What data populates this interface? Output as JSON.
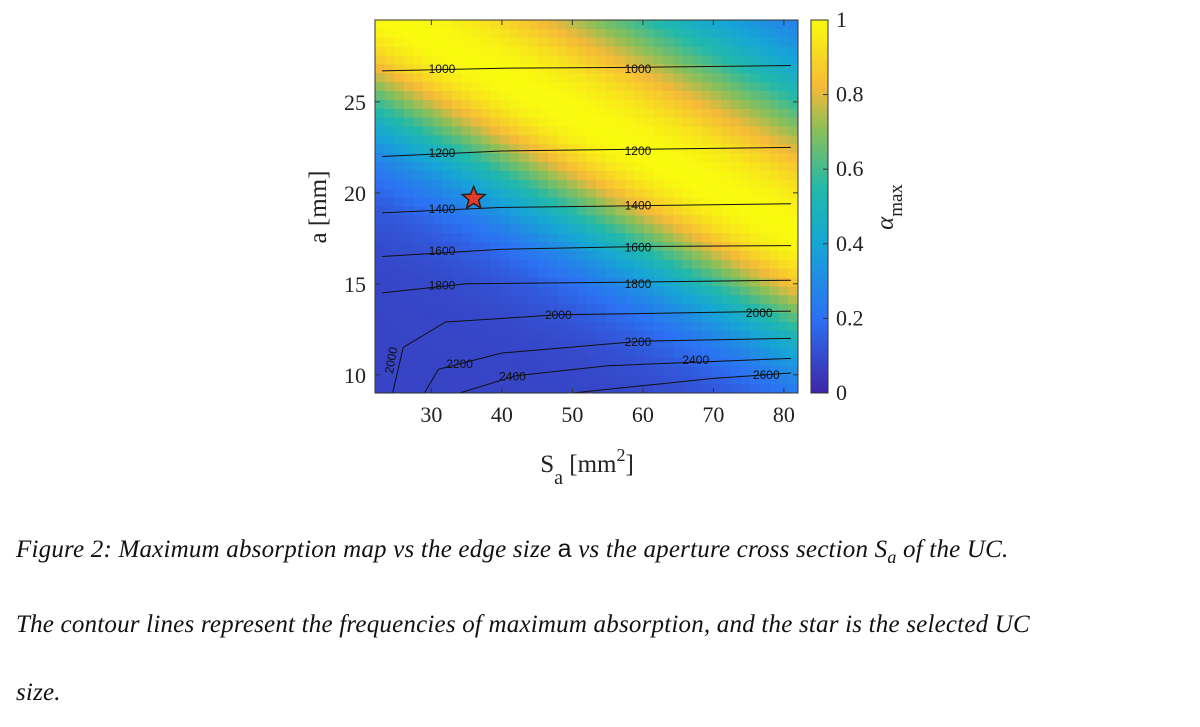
{
  "chart_data": {
    "type": "heatmap",
    "xlabel": "S",
    "xlabel_sub": "a",
    "xlabel_unit": "[mm",
    "xlabel_unit_sup": "2",
    "xlabel_unit_end": "]",
    "ylabel": "a [mm]",
    "xlim": [
      22,
      82
    ],
    "ylim": [
      9,
      29.5
    ],
    "xticks": [
      "30",
      "40",
      "50",
      "60",
      "70",
      "80"
    ],
    "yticks": [
      "10",
      "15",
      "20",
      "25"
    ],
    "colorbar": {
      "label": "α",
      "label_sub": "max",
      "min": 0,
      "max": 1,
      "ticks": [
        "0",
        "0.2",
        "0.4",
        "0.6",
        "0.8",
        "1"
      ]
    },
    "contour_labels": [
      {
        "text": "1000",
        "x": 31.5,
        "y": 26.8
      },
      {
        "text": "1000",
        "x": 59.3,
        "y": 26.8
      },
      {
        "text": "1200",
        "x": 31.5,
        "y": 22.2
      },
      {
        "text": "1200",
        "x": 59.3,
        "y": 22.3
      },
      {
        "text": "1400",
        "x": 31.5,
        "y": 19.1
      },
      {
        "text": "1400",
        "x": 59.3,
        "y": 19.3
      },
      {
        "text": "1600",
        "x": 31.5,
        "y": 16.8
      },
      {
        "text": "1600",
        "x": 59.3,
        "y": 17.0
      },
      {
        "text": "1800",
        "x": 31.5,
        "y": 14.9
      },
      {
        "text": "1800",
        "x": 59.3,
        "y": 15.0
      },
      {
        "text": "2000",
        "x": 48.0,
        "y": 13.3
      },
      {
        "text": "2000",
        "x": 76.5,
        "y": 13.4
      },
      {
        "text": "2200",
        "x": 34.0,
        "y": 10.6
      },
      {
        "text": "2200",
        "x": 59.3,
        "y": 11.8
      },
      {
        "text": "2400",
        "x": 41.5,
        "y": 9.9
      },
      {
        "text": "2400",
        "x": 67.5,
        "y": 10.8
      },
      {
        "text": "2600",
        "x": 77.5,
        "y": 10.0
      },
      {
        "text": "2000",
        "x": 24.3,
        "y": 10.8
      }
    ],
    "selected_point": {
      "x": 36,
      "y": 19.7
    }
  },
  "caption": {
    "line1_a": "Figure 2: Maximum absorption map vs the edge size ",
    "line1_sym": "a",
    "line1_b": " vs the aperture cross section ",
    "line1_S": "S",
    "line1_sub": "a",
    "line1_c": " of the UC.",
    "line2": "The contour lines represent the frequencies of maximum absorption, and the star is the selected UC",
    "line3": "size."
  }
}
